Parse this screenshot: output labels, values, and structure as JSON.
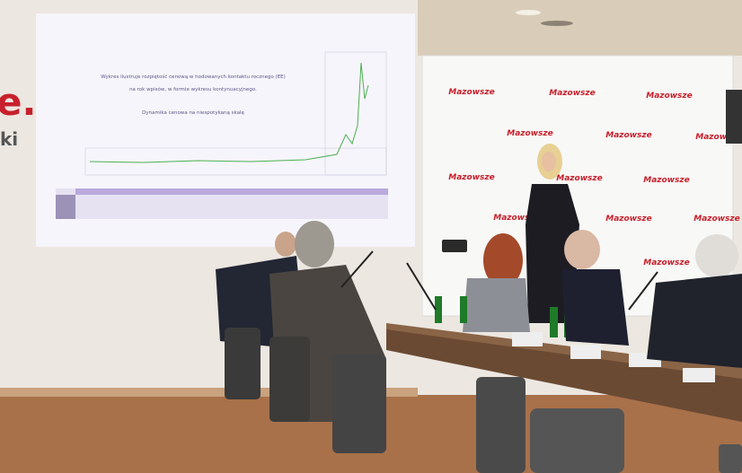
{
  "wall_sign": {
    "mark": "e.",
    "text": "ki"
  },
  "slide": {
    "lines": [
      "Wykres ilustruje rozpiętość cenową w hodowanych kontaktu rocznego (EE)",
      "na rok wpisów, w formie wykresu kontynuacyjnego.",
      "Dynamika cenowa na niespotykaną skalę"
    ]
  },
  "backdrop": {
    "logo": "Mazowsze"
  }
}
